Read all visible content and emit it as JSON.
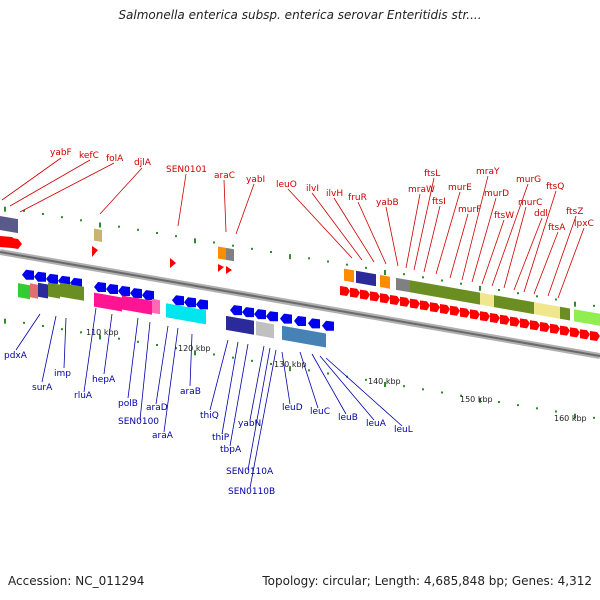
{
  "title": "Salmonella enterica subsp. enterica serovar Enteritidis str....",
  "footer": {
    "accession": "Accession: NC_011294",
    "summary": "Topology: circular; Length: 4,685,848 bp; Genes: 4,312"
  },
  "ticks": [
    "110 kbp",
    "120 kbp",
    "130 kbp",
    "140 kbp",
    "150 kbp",
    "160 kbp"
  ],
  "top_labels": [
    "yabF",
    "kefC",
    "folA",
    "djlA",
    "SEN0101",
    "araC",
    "yabI",
    "leuO",
    "ilvI",
    "ilvH",
    "fruR",
    "yabB",
    "mraW",
    "ftsL",
    "ftsI",
    "murE",
    "murF",
    "mraY",
    "murD",
    "ftsW",
    "murG",
    "murC",
    "ddl",
    "ftsQ",
    "ftsA",
    "ftsZ",
    "lpxC"
  ],
  "bottom_labels": [
    "pdxA",
    "surA",
    "imp",
    "rluA",
    "hepA",
    "polB",
    "SEN0100",
    "araD",
    "araA",
    "araB",
    "thiQ",
    "thiP",
    "tbpA",
    "yabN",
    "SEN0110A",
    "SEN0110B",
    "leuD",
    "leuC",
    "leuB",
    "leuA",
    "leuL"
  ],
  "colors": {
    "forward": "#ff0000",
    "reverse": "#0000ff",
    "top_label": "#cc0000",
    "bottom_label": "#0000aa",
    "backbone": "#808080",
    "cog_green": "#6b8e23",
    "cog_magenta": "#ff1493",
    "cog_cyan": "#00e5ee",
    "cog_orange": "#ff8c00",
    "cog_khaki": "#c8b46e",
    "cog_lightyellow": "#f0e68c",
    "cog_navy": "#2a2a9a",
    "cog_lime": "#90ee50"
  }
}
